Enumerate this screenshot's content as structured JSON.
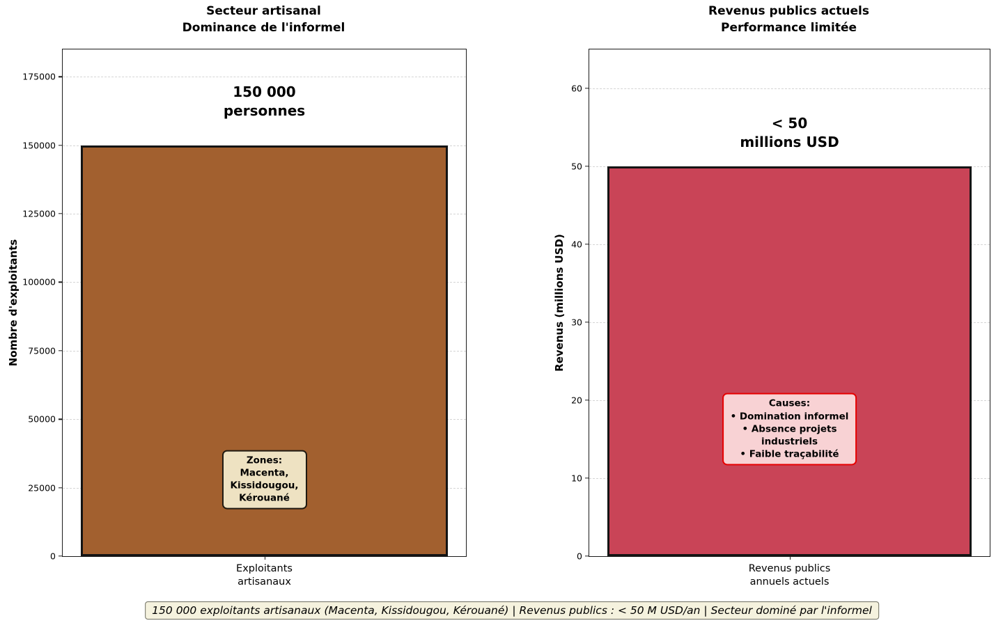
{
  "figure": {
    "background": "#ffffff",
    "grid_color": "#d4d4d4",
    "spine_color": "#1a1a1a"
  },
  "chart_data": [
    {
      "type": "bar",
      "title": "Secteur artisanal\nDominance de l'informel",
      "categories": [
        "Exploitants\nartisanaux"
      ],
      "values": [
        150000
      ],
      "bar_color": "#A2602F",
      "bar_edge_color": "#141414",
      "xlabel": "",
      "ylabel": "Nombre d'exploitants",
      "ylim": [
        0,
        185000
      ],
      "yticks": [
        0,
        25000,
        50000,
        75000,
        100000,
        125000,
        150000,
        175000
      ],
      "grid": true,
      "legend": null,
      "annotation": {
        "text": "150 000\npersonnes",
        "y_center": 166000
      },
      "note_box": {
        "text": "Zones:\nMacenta,\nKissidougou,\nKérouané",
        "bg": "#EEE2C2",
        "border": "#1f1a12",
        "y_center": 28000
      }
    },
    {
      "type": "bar",
      "title": "Revenus publics actuels\nPerformance limitée",
      "categories": [
        "Revenus publics\nannuels actuels"
      ],
      "values": [
        50
      ],
      "bar_color": "#C94457",
      "bar_edge_color": "#141414",
      "xlabel": "",
      "ylabel": "Revenus (millions USD)",
      "ylim": [
        0,
        65
      ],
      "yticks": [
        0,
        10,
        20,
        30,
        40,
        50,
        60
      ],
      "grid": true,
      "legend": null,
      "annotation": {
        "text": "< 50\nmillions USD",
        "y_center": 54.3
      },
      "note_box": {
        "text": "Causes:\n• Domination informel\n• Absence projets\nindustriels\n• Faible traçabilité",
        "bg": "#F8D2D4",
        "border": "#E60000",
        "y_center": 16.3
      }
    }
  ],
  "caption": {
    "text": "150 000 exploitants artisanaux (Macenta, Kissidougou, Kérouané) | Revenus publics : < 50 M USD/an | Secteur dominé par l'informel"
  }
}
